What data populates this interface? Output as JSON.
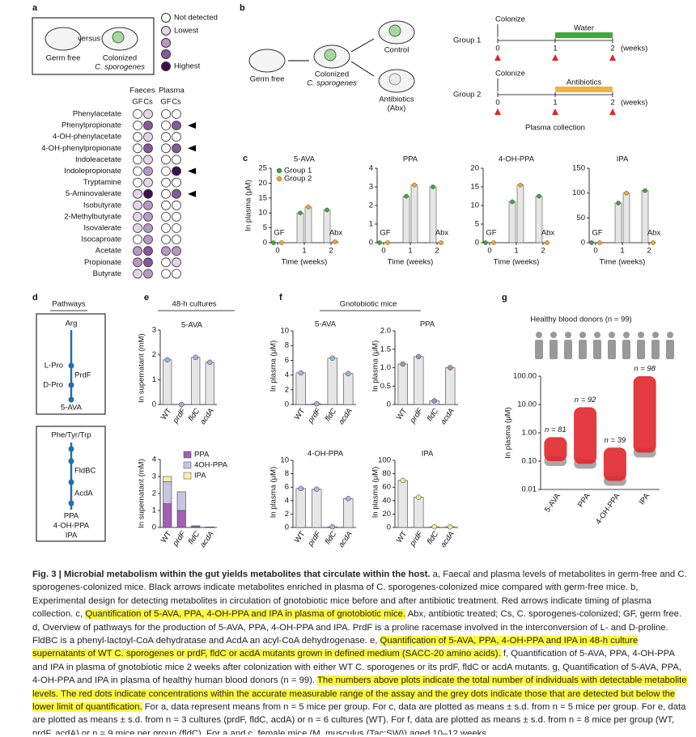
{
  "panel_a": {
    "label": "a",
    "mouse_labels": [
      "Germ free",
      "versus",
      "Colonized",
      "C. sporogenes"
    ],
    "level_colors": [
      "#ffffff",
      "#e4d5e8",
      "#b999c4",
      "#87599c",
      "#3d0f4e"
    ],
    "legend": [
      {
        "level": 0,
        "text": "Not detected"
      },
      {
        "level": 1,
        "text": "Lowest"
      },
      {
        "level": 2
      },
      {
        "level": 3
      },
      {
        "level": 4,
        "text": "Highest"
      }
    ],
    "groups": [
      "Faeces",
      "Plasma"
    ],
    "columns": [
      "GF",
      "Cs",
      "GF",
      "Cs"
    ],
    "rows": [
      {
        "name": "Phenylacetate",
        "levels": [
          0,
          1,
          0,
          0
        ],
        "arrow": false
      },
      {
        "name": "Phenylpropionate",
        "levels": [
          0,
          3,
          0,
          3
        ],
        "arrow": true
      },
      {
        "name": "4-OH-phenylacetate",
        "levels": [
          0,
          1,
          0,
          0
        ],
        "arrow": false
      },
      {
        "name": "4-OH-phenylpropionate",
        "levels": [
          0,
          3,
          0,
          3
        ],
        "arrow": true
      },
      {
        "name": "Indoleacetate",
        "levels": [
          0,
          1,
          0,
          0
        ],
        "arrow": false
      },
      {
        "name": "Indolepropionate",
        "levels": [
          0,
          2,
          0,
          4
        ],
        "arrow": true
      },
      {
        "name": "Tryptamine",
        "levels": [
          0,
          1,
          0,
          0
        ],
        "arrow": false
      },
      {
        "name": "5-Aminovalerate",
        "levels": [
          1,
          4,
          0,
          3
        ],
        "arrow": true
      },
      {
        "name": "Isobutyrate",
        "levels": [
          1,
          2,
          0,
          0
        ],
        "arrow": false
      },
      {
        "name": "2-Methylbutyrate",
        "levels": [
          1,
          2,
          0,
          0
        ],
        "arrow": false
      },
      {
        "name": "Isovalerate",
        "levels": [
          1,
          2,
          0,
          0
        ],
        "arrow": false
      },
      {
        "name": "Isocaproate",
        "levels": [
          0,
          2,
          0,
          0
        ],
        "arrow": false
      },
      {
        "name": "Acetate",
        "levels": [
          2,
          3,
          2,
          2
        ],
        "arrow": false
      },
      {
        "name": "Propionate",
        "levels": [
          2,
          3,
          0,
          1
        ],
        "arrow": false
      },
      {
        "name": "Butyrate",
        "levels": [
          1,
          2,
          0,
          0
        ],
        "arrow": false
      }
    ]
  },
  "panel_b": {
    "label": "b",
    "mice": [
      "Germ free",
      "Colonized",
      "C. sporogenes",
      "Control",
      "Antibiotics",
      "(Abx)"
    ],
    "groups": [
      {
        "name": "Group 1",
        "event": "Colonize",
        "treatment": "Water",
        "color": "#3aaa35"
      },
      {
        "name": "Group 2",
        "event": "Colonize",
        "treatment": "Antibiotics",
        "color": "#f5b041"
      }
    ],
    "timeline": {
      "ticks": [
        0,
        1,
        2
      ],
      "unit": "(weeks)",
      "treatment_start": 1,
      "treatment_end": 2
    },
    "collection": "Plasma collection"
  },
  "panel_c": {
    "label": "c",
    "ylabel": "In plasma (μM)",
    "xlabel": "Time (weeks)",
    "xticks": [
      0,
      1,
      2
    ],
    "annotations": [
      "GF",
      "Abx"
    ],
    "series": [
      {
        "name": "Group 1",
        "color": "#3aaa35"
      },
      {
        "name": "Group 2",
        "color": "#f5a623"
      }
    ],
    "charts": [
      {
        "title": "5-AVA",
        "ylim": [
          0,
          25
        ],
        "yticks": [
          0,
          5,
          10,
          15,
          20,
          25
        ],
        "values": [
          [
            0,
            10,
            11
          ],
          [
            0,
            12,
            0.3
          ]
        ]
      },
      {
        "title": "PPA",
        "ylim": [
          0,
          4
        ],
        "yticks": [
          0,
          1,
          2,
          3,
          4
        ],
        "values": [
          [
            0,
            2.5,
            3
          ],
          [
            0,
            3.1,
            0
          ]
        ]
      },
      {
        "title": "4-OH-PPA",
        "ylim": [
          0,
          20
        ],
        "yticks": [
          0,
          5,
          10,
          15,
          20
        ],
        "values": [
          [
            0,
            11,
            12.5
          ],
          [
            0,
            15.5,
            0
          ]
        ]
      },
      {
        "title": "IPA",
        "ylim": [
          0,
          150
        ],
        "yticks": [
          0,
          50,
          100,
          150
        ],
        "values": [
          [
            0,
            80,
            105
          ],
          [
            0,
            100,
            0
          ]
        ]
      }
    ]
  },
  "panel_d": {
    "label": "d",
    "title": "Pathways",
    "box1": [
      "Arg",
      "L-Pro",
      "D-Pro",
      "PrdF",
      "5-AVA"
    ],
    "box2": [
      "Phe/Tyr/Trp",
      "FldBC",
      "AcdA",
      "PPA",
      "4-OH-PPA",
      "IPA"
    ]
  },
  "panel_e": {
    "label": "e",
    "title": "48-h cultures",
    "ylabel": "In supernatant (mM)",
    "categories": [
      "WT",
      "prdF",
      "fldC",
      "acdA"
    ],
    "chart1": {
      "title": "5-AVA",
      "ylim": [
        0,
        3
      ],
      "yticks": [
        0,
        1,
        2,
        3
      ],
      "values": [
        1.8,
        0,
        1.9,
        1.7
      ]
    },
    "chart2": {
      "ylim": [
        0,
        4
      ],
      "yticks": [
        0,
        1,
        2,
        3,
        4
      ],
      "series": [
        {
          "name": "PPA",
          "color": "#a35fb5",
          "values": [
            1.4,
            1.0,
            0.05,
            0
          ]
        },
        {
          "name": "4OH-PPA",
          "color": "#c7c4e2",
          "values": [
            1.3,
            1.1,
            0.05,
            0.03
          ]
        },
        {
          "name": "IPA",
          "color": "#f6f0a8",
          "values": [
            0.3,
            0,
            0,
            0
          ]
        }
      ]
    }
  },
  "panel_f": {
    "label": "f",
    "title": "Gnotobiotic mice",
    "ylabel": "In plasma (μM)",
    "categories": [
      "WT",
      "prdF",
      "fldC",
      "acdA"
    ],
    "charts": [
      {
        "title": "5-AVA",
        "ylim": [
          0,
          10
        ],
        "yticks": [
          0,
          2,
          4,
          6,
          8,
          10
        ],
        "values": [
          4.3,
          0.1,
          6.3,
          4.2
        ],
        "color": "#9ab7d8"
      },
      {
        "title": "PPA",
        "ylim": [
          0,
          2
        ],
        "yticks": [
          0,
          {
            "value": 0.5,
            "label": "0.5"
          },
          {
            "value": 1,
            "label": "1.0"
          },
          {
            "value": 1.5,
            "label": "1.5"
          },
          {
            "value": 2,
            "label": "2.0"
          }
        ],
        "values": [
          1.1,
          1.3,
          0.1,
          1.0
        ],
        "color": "#b28cc4"
      },
      {
        "title": "4-OH-PPA",
        "ylim": [
          0,
          10
        ],
        "yticks": [
          0,
          2,
          4,
          6,
          8,
          10
        ],
        "values": [
          5.8,
          5.7,
          0.1,
          4.3
        ],
        "color": "#a9b6db"
      },
      {
        "title": "IPA",
        "ylim": [
          0,
          100
        ],
        "yticks": [
          0,
          20,
          40,
          60,
          80,
          100
        ],
        "values": [
          70,
          45,
          1,
          1
        ],
        "color": "#f2e58c"
      }
    ]
  },
  "panel_g": {
    "label": "g",
    "title": "Healthy blood donors (n = 99)",
    "ylabel": "In plasma (μM)",
    "log": true,
    "ylim": [
      0.01,
      100
    ],
    "yticks": [
      {
        "value": 0.01,
        "label": "0.01"
      },
      {
        "value": 0.1,
        "label": "0.10"
      },
      {
        "value": 1,
        "label": "1.00"
      },
      {
        "value": 10,
        "label": "10.00"
      },
      {
        "value": 100,
        "label": "100.00"
      }
    ],
    "categories": [
      "5-AVA",
      "PPA",
      "4-OH-PPA",
      "IPA"
    ],
    "n_labels": [
      "n = 81",
      "n = 92",
      "n = 39",
      "n = 98"
    ],
    "low": [
      0.1,
      0.08,
      0.02,
      0.2
    ],
    "high": [
      0.7,
      8,
      0.3,
      100
    ],
    "color": "#e0262b",
    "low_color": "#a8a8a8"
  },
  "caption": {
    "segments": [
      {
        "text": "Fig. 3 | Microbial metabolism within the gut yields metabolites that circulate within the host.",
        "bold": true
      },
      {
        "text": " a, Faecal and plasma levels of metabolites in germ-free and C. sporogenes-colonized mice. Black arrows indicate metabolites enriched in plasma of C. sporogenes-colonized mice compared with germ-free mice. b, Experimental design for detecting metabolites in circulation of gnotobiotic mice before and after antibiotic treatment. Red arrows indicate timing of plasma collection. c, "
      },
      {
        "text": "Quantification of 5-AVA, PPA, 4-OH-PPA and IPA in plasma of gnotobiotic mice.",
        "highlight": true
      },
      {
        "text": " Abx, antibiotic treated; Cs, C. sporogenes-colonized; GF, germ free. d, Overview of pathways for the production of 5-AVA, PPA, 4-OH-PPA and IPA. PrdF is a proline racemase involved in the interconversion of L- and D-proline. FldBC is a phenyl-lactoyl-CoA dehydratase and AcdA an acyl-CoA dehydrogenase. e, "
      },
      {
        "text": "Quantification of 5-AVA, PPA, 4-OH-PPA and IPA in 48-h culture supernatants of WT C. sporogenes or prdF, fldC or acdA mutants grown in defined medium (SACC-20 amino acids).",
        "highlight": true
      },
      {
        "text": " f, Quantification of 5-AVA, PPA, 4-OH-PPA and IPA in plasma of gnotobiotic mice 2 weeks after colonization with either WT C. sporogenes or its prdF, fldC or acdA mutants. g, Quantification of 5-AVA, PPA, 4-OH-PPA and IPA in plasma of healthy human blood donors (n = 99). "
      },
      {
        "text": "The numbers above plots indicate the total number of individuals with detectable metabolite levels. The red dots indicate concentrations within the accurate measurable range of the assay and the grey dots indicate those that are detected but below the lower limit of quantification.",
        "highlight": true
      },
      {
        "text": " For a, data represent means from n = 5 mice per group. For c, data are plotted as means ± s.d. from n = 5 mice per group. For e, data are plotted as means ± s.d. from n = 3 cultures (prdF, fldC, acdA) or n = 6 cultures (WT). For f, data are plotted as means ± s.d. from n = 8 mice per group (WT, prdF, acdA) or n = 9 mice per group (fldC). For a and c, female mice (M. musculus (Tac:SW)) aged 10–12 weeks"
      }
    ]
  }
}
